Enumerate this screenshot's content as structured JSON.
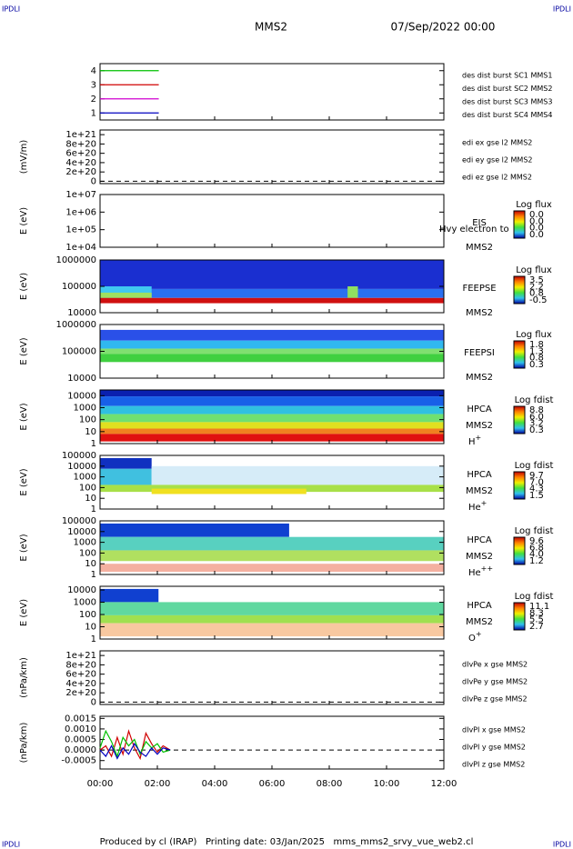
{
  "header": {
    "left": "IPDLI",
    "right": "IPDLI",
    "title": "MMS2",
    "date": "07/Sep/2022 00:00"
  },
  "footer": {
    "left": "IPDLI",
    "right": "IPDLI",
    "text": "Produced by cl (IRAP)   Printing date: 03/Jan/2025   mms_mms2_srvy_vue_web2.cl"
  },
  "time_axis": {
    "xlim": [
      0,
      12
    ],
    "xticks": [
      {
        "value": 0,
        "label": "00:00"
      },
      {
        "value": 2,
        "label": "02:00"
      },
      {
        "value": 4,
        "label": "04:00"
      },
      {
        "value": 6,
        "label": "06:00"
      },
      {
        "value": 8,
        "label": "08:00"
      },
      {
        "value": 10,
        "label": "10:00"
      },
      {
        "value": 12,
        "label": "12:00"
      }
    ]
  },
  "chart_data": [
    {
      "type": "line",
      "ylim": [
        0.5,
        4.5
      ],
      "yticks": [
        1,
        2,
        3,
        4
      ],
      "series": [
        {
          "name": "des dist burst SC1 MMS1",
          "color": "#0000c0",
          "x": [
            0,
            2.05
          ],
          "values": [
            1,
            1
          ]
        },
        {
          "name": "des dist burst SC2 MMS2",
          "color": "#d000d0",
          "x": [
            0,
            2.05
          ],
          "values": [
            2,
            2
          ]
        },
        {
          "name": "des dist burst SC3 MMS3",
          "color": "#d00000",
          "x": [
            0,
            2.05
          ],
          "values": [
            3,
            3
          ]
        },
        {
          "name": "des dist burst SC4 MMS4",
          "color": "#00c000",
          "x": [
            0,
            2.05
          ],
          "values": [
            4,
            4
          ]
        }
      ]
    },
    {
      "type": "line",
      "ylabel": "(mV/m)",
      "ylim": [
        -5e+19,
        1.1e+21
      ],
      "zero_line": true,
      "yticks": [
        {
          "value": 0,
          "label": "0"
        },
        {
          "value": 2e+20,
          "label": "2e+20"
        },
        {
          "value": 4e+20,
          "label": "4e+20"
        },
        {
          "value": 6e+20,
          "label": "6e+20"
        },
        {
          "value": 8e+20,
          "label": "8e+20"
        },
        {
          "value": 1e+21,
          "label": "1e+21"
        }
      ],
      "series": [
        {
          "name": "edi ex gse l2 MMS2",
          "color": "#d00000",
          "x": [],
          "values": []
        },
        {
          "name": "edi ey gse l2 MMS2",
          "color": "#00c000",
          "x": [],
          "values": []
        },
        {
          "name": "edi ez gse l2 MMS2",
          "color": "#0000c0",
          "x": [],
          "values": []
        }
      ]
    },
    {
      "type": "spectrogram",
      "ylabel": "E (eV)",
      "log": true,
      "ylim": [
        10000,
        10000000
      ],
      "yticks": [
        {
          "value": 10000,
          "label": "1e+04"
        },
        {
          "value": 100000,
          "label": "1e+05"
        },
        {
          "value": 1000000,
          "label": "1e+06"
        },
        {
          "value": 10000000,
          "label": "1e+07"
        }
      ],
      "labels": [
        "EIS",
        "MMS2"
      ],
      "note": "Hvy electron to",
      "cbtitle": "Log flux",
      "cbticks": [
        {
          "value": 0,
          "label": "0.0"
        },
        {
          "value": 0,
          "label": "0.0"
        },
        {
          "value": 0,
          "label": "0.0"
        },
        {
          "value": 0,
          "label": "0.0"
        }
      ]
    },
    {
      "type": "spectrogram",
      "ylabel": "E (eV)",
      "log": true,
      "ylim": [
        10000,
        1000000
      ],
      "yticks": [
        10000,
        100000,
        1000000
      ],
      "labels": [
        "FEEPSE",
        "MMS2"
      ],
      "cbtitle": "Log flux",
      "cbticks": [
        3.5,
        2.2,
        0.8,
        -0.5
      ]
    },
    {
      "type": "spectrogram",
      "ylabel": "E (eV)",
      "log": true,
      "ylim": [
        10000,
        1000000
      ],
      "yticks": [
        10000,
        100000,
        1000000
      ],
      "labels": [
        "FEEPSI",
        "MMS2"
      ],
      "cbtitle": "Log flux",
      "cbticks": [
        1.8,
        1.3,
        0.8,
        0.3
      ]
    },
    {
      "type": "spectrogram",
      "ylabel": "E (eV)",
      "log": true,
      "ylim": [
        1,
        30000
      ],
      "yticks": [
        1,
        10,
        100,
        1000,
        10000
      ],
      "labels": [
        "HPCA",
        "MMS2"
      ],
      "species": "H",
      "charge": "+",
      "cbtitle": "Log fdist",
      "cbticks": [
        8.8,
        {
          "value": 6,
          "label": "6.0"
        },
        3.2,
        0.3
      ]
    },
    {
      "type": "spectrogram",
      "ylabel": "E (eV)",
      "log": true,
      "ylim": [
        1,
        100000
      ],
      "yticks": [
        1,
        10,
        100,
        1000,
        10000,
        100000
      ],
      "labels": [
        "HPCA",
        "MMS2"
      ],
      "species": "He",
      "charge": "+",
      "cbtitle": "Log fdist",
      "cbticks": [
        9.7,
        {
          "value": 7,
          "label": "7.0"
        },
        4.3,
        1.5
      ]
    },
    {
      "type": "spectrogram",
      "ylabel": "E (eV)",
      "log": true,
      "ylim": [
        1,
        100000
      ],
      "yticks": [
        1,
        10,
        100,
        1000,
        10000,
        100000
      ],
      "labels": [
        "HPCA",
        "MMS2"
      ],
      "species": "He",
      "charge": "++",
      "cbtitle": "Log fdist",
      "cbticks": [
        9.6,
        6.8,
        {
          "value": 4,
          "label": "4.0"
        },
        1.2
      ]
    },
    {
      "type": "spectrogram",
      "ylabel": "E (eV)",
      "log": true,
      "ylim": [
        1,
        20000
      ],
      "yticks": [
        1,
        10,
        100,
        1000,
        10000
      ],
      "labels": [
        "HPCA",
        "MMS2"
      ],
      "species": "O",
      "charge": "+",
      "cbtitle": "Log fdist",
      "cbticks": [
        11.1,
        8.3,
        5.5,
        2.7
      ]
    },
    {
      "type": "line",
      "ylabel": "(nPa/km)",
      "ylim": [
        -5e+19,
        1.1e+21
      ],
      "zero_line": true,
      "yticks": [
        {
          "value": 0,
          "label": "0"
        },
        {
          "value": 2e+20,
          "label": "2e+20"
        },
        {
          "value": 4e+20,
          "label": "4e+20"
        },
        {
          "value": 6e+20,
          "label": "6e+20"
        },
        {
          "value": 8e+20,
          "label": "8e+20"
        },
        {
          "value": 1e+21,
          "label": "1e+21"
        }
      ],
      "series": [
        {
          "name": "dIvPe x gse MMS2",
          "color": "#d00000",
          "x": [],
          "values": []
        },
        {
          "name": "dIvPe y gse MMS2",
          "color": "#00c000",
          "x": [],
          "values": []
        },
        {
          "name": "dIvPe z gse MMS2",
          "color": "#0000c0",
          "x": [],
          "values": []
        }
      ]
    },
    {
      "type": "line",
      "ylabel": "(nPa/km)",
      "ylim": [
        -0.0009,
        0.0016
      ],
      "zero_line": true,
      "yticks": [
        {
          "value": -0.0005,
          "label": "-0.0005"
        },
        {
          "value": 0,
          "label": "0.0000"
        },
        {
          "value": 0.0005,
          "label": "0.0005"
        },
        {
          "value": 0.001,
          "label": "0.0010"
        },
        {
          "value": 0.0015,
          "label": "0.0015"
        }
      ],
      "series": [
        {
          "name": "dIvPI x gse MMS2",
          "color": "#d00000",
          "x": [
            0,
            0.2,
            0.4,
            0.6,
            0.8,
            1.0,
            1.2,
            1.4,
            1.6,
            1.8,
            2.0,
            2.2,
            2.45
          ],
          "values": [
            0,
            0.0002,
            -0.0003,
            0.0006,
            -0.0002,
            0.0009,
            0.0001,
            -0.0004,
            0.0008,
            0.0003,
            -0.0001,
            0.0002,
            0
          ]
        },
        {
          "name": "dIvPI y gse MMS2",
          "color": "#00c000",
          "x": [
            0,
            0.2,
            0.4,
            0.6,
            0.8,
            1.0,
            1.2,
            1.4,
            1.6,
            1.8,
            2.0,
            2.2,
            2.45
          ],
          "values": [
            0.0001,
            0.0009,
            0.0004,
            -0.0003,
            0.0006,
            0.0002,
            0.0005,
            -0.0002,
            0.0004,
            0.0001,
            0.0003,
            -0.0001,
            0
          ]
        },
        {
          "name": "dIvPI z gse MMS2",
          "color": "#0000c0",
          "x": [
            0,
            0.2,
            0.4,
            0.6,
            0.8,
            1.0,
            1.2,
            1.4,
            1.6,
            1.8,
            2.0,
            2.2,
            2.45
          ],
          "values": [
            0,
            -0.0003,
            0.0002,
            -0.0004,
            0.0001,
            -0.0002,
            0.0003,
            -0.0001,
            -0.0003,
            0.0001,
            -0.0002,
            0.0001,
            0
          ]
        }
      ]
    }
  ]
}
